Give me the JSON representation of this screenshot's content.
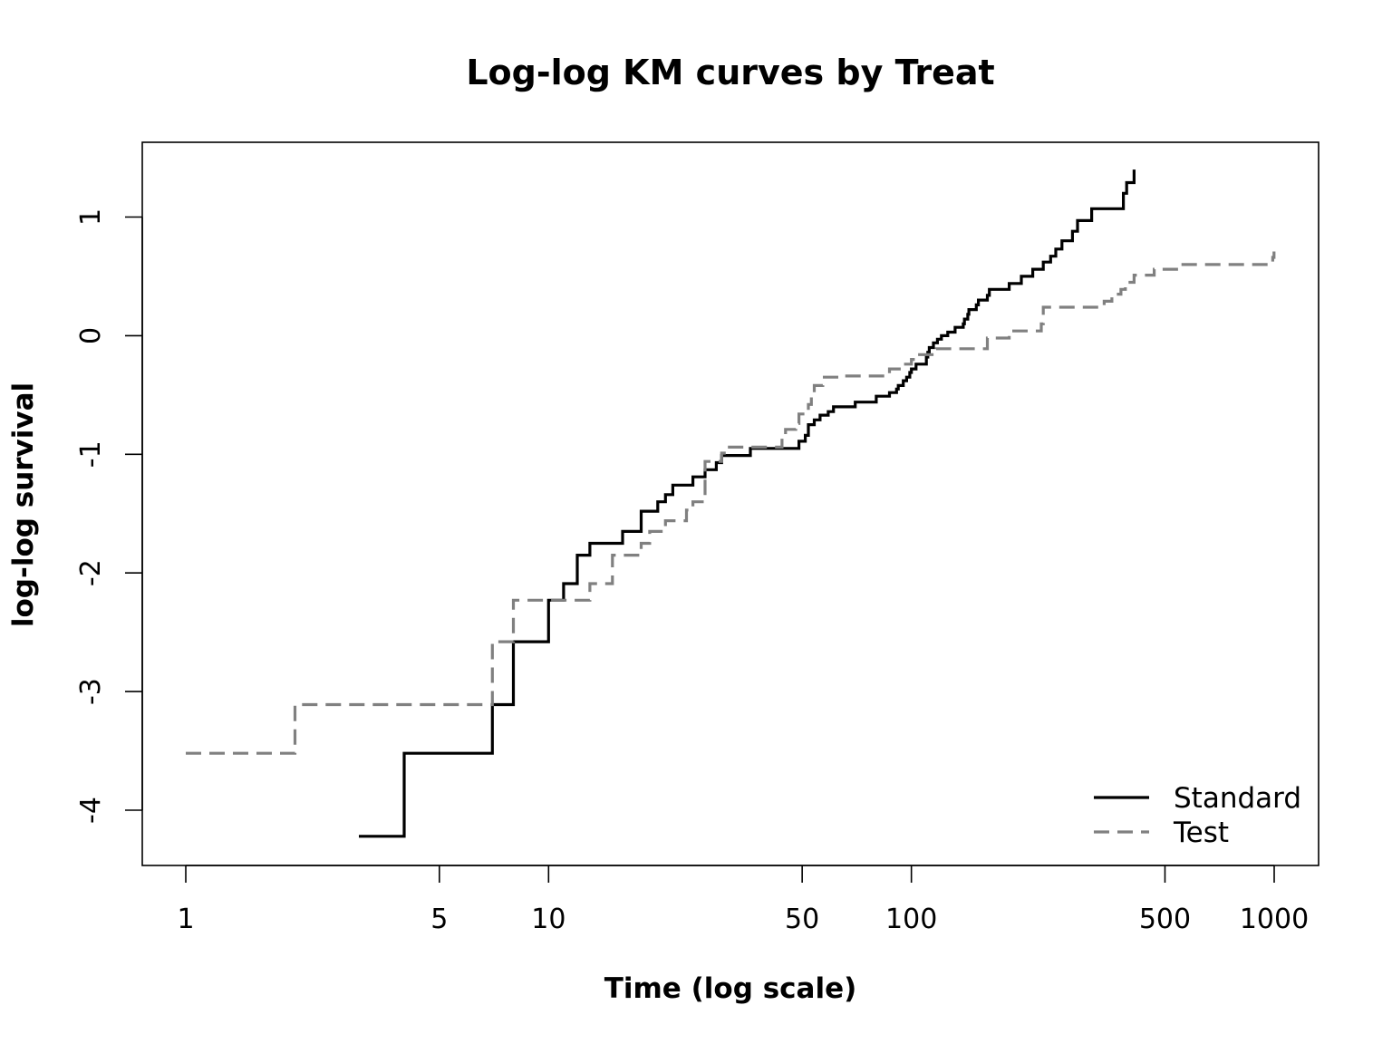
{
  "chart_data": {
    "type": "line",
    "step": true,
    "title": "Log-log KM curves by Treat",
    "xlabel": "Time (log scale)",
    "ylabel": "log-log survival",
    "x_scale": "log",
    "xlim": [
      1,
      1000
    ],
    "ylim": [
      -4.5,
      1.6
    ],
    "x_ticks": [
      1,
      5,
      10,
      50,
      100,
      500,
      1000
    ],
    "x_tick_labels": [
      "1",
      "5",
      "10",
      "50",
      "100",
      "500",
      "1000"
    ],
    "y_ticks": [
      -4,
      -3,
      -2,
      -1,
      0,
      1
    ],
    "y_tick_labels": [
      "-4",
      "-3",
      "-2",
      "-1",
      "0",
      "1"
    ],
    "grid": false,
    "legend_position": "bottom-right",
    "series": [
      {
        "name": "Standard",
        "color": "#000000",
        "line_style": "solid",
        "x": [
          3,
          4,
          7,
          8,
          10,
          11,
          12,
          13,
          16,
          18,
          20,
          21,
          22,
          25,
          27,
          29,
          30,
          36,
          49,
          51,
          52,
          54,
          56,
          59,
          61,
          70,
          80,
          87,
          91,
          92,
          95,
          97,
          99,
          100,
          103,
          110,
          111,
          112,
          115,
          118,
          121,
          126,
          132,
          139,
          140,
          143,
          144,
          151,
          153,
          162,
          164,
          186,
          201,
          216,
          231,
          242,
          250,
          260,
          278,
          287,
          314,
          384,
          392,
          411
        ],
        "y": [
          -4.22,
          -3.52,
          -3.11,
          -2.58,
          -2.23,
          -2.09,
          -1.85,
          -1.75,
          -1.65,
          -1.48,
          -1.4,
          -1.34,
          -1.26,
          -1.19,
          -1.13,
          -1.07,
          -1.01,
          -0.95,
          -0.89,
          -0.84,
          -0.75,
          -0.71,
          -0.67,
          -0.64,
          -0.6,
          -0.56,
          -0.51,
          -0.48,
          -0.45,
          -0.42,
          -0.38,
          -0.35,
          -0.31,
          -0.28,
          -0.24,
          -0.18,
          -0.14,
          -0.1,
          -0.06,
          -0.03,
          0.0,
          0.03,
          0.07,
          0.1,
          0.14,
          0.18,
          0.22,
          0.26,
          0.3,
          0.34,
          0.39,
          0.44,
          0.5,
          0.56,
          0.62,
          0.67,
          0.73,
          0.8,
          0.88,
          0.97,
          1.07,
          1.2,
          1.29,
          1.4
        ]
      },
      {
        "name": "Test",
        "color": "#808080",
        "line_style": "dashed",
        "x": [
          1,
          2,
          7,
          8,
          11,
          13,
          15,
          18,
          19,
          21,
          24,
          25,
          27,
          30,
          31,
          44,
          45,
          48,
          49,
          52,
          53,
          54,
          57,
          64,
          87,
          95,
          100,
          103,
          117,
          162,
          186,
          228,
          231,
          340,
          357,
          378,
          389,
          411,
          467,
          553,
          991,
          999
        ],
        "y": [
          -3.52,
          -3.11,
          -2.58,
          -2.23,
          -2.23,
          -2.09,
          -1.85,
          -1.75,
          -1.65,
          -1.56,
          -1.47,
          -1.4,
          -1.06,
          -0.99,
          -0.94,
          -0.84,
          -0.79,
          -0.74,
          -0.66,
          -0.58,
          -0.52,
          -0.42,
          -0.35,
          -0.34,
          -0.28,
          -0.24,
          -0.2,
          -0.16,
          -0.11,
          -0.02,
          0.04,
          0.1,
          0.24,
          0.29,
          0.35,
          0.39,
          0.45,
          0.51,
          0.56,
          0.6,
          0.66,
          0.71
        ]
      }
    ]
  }
}
